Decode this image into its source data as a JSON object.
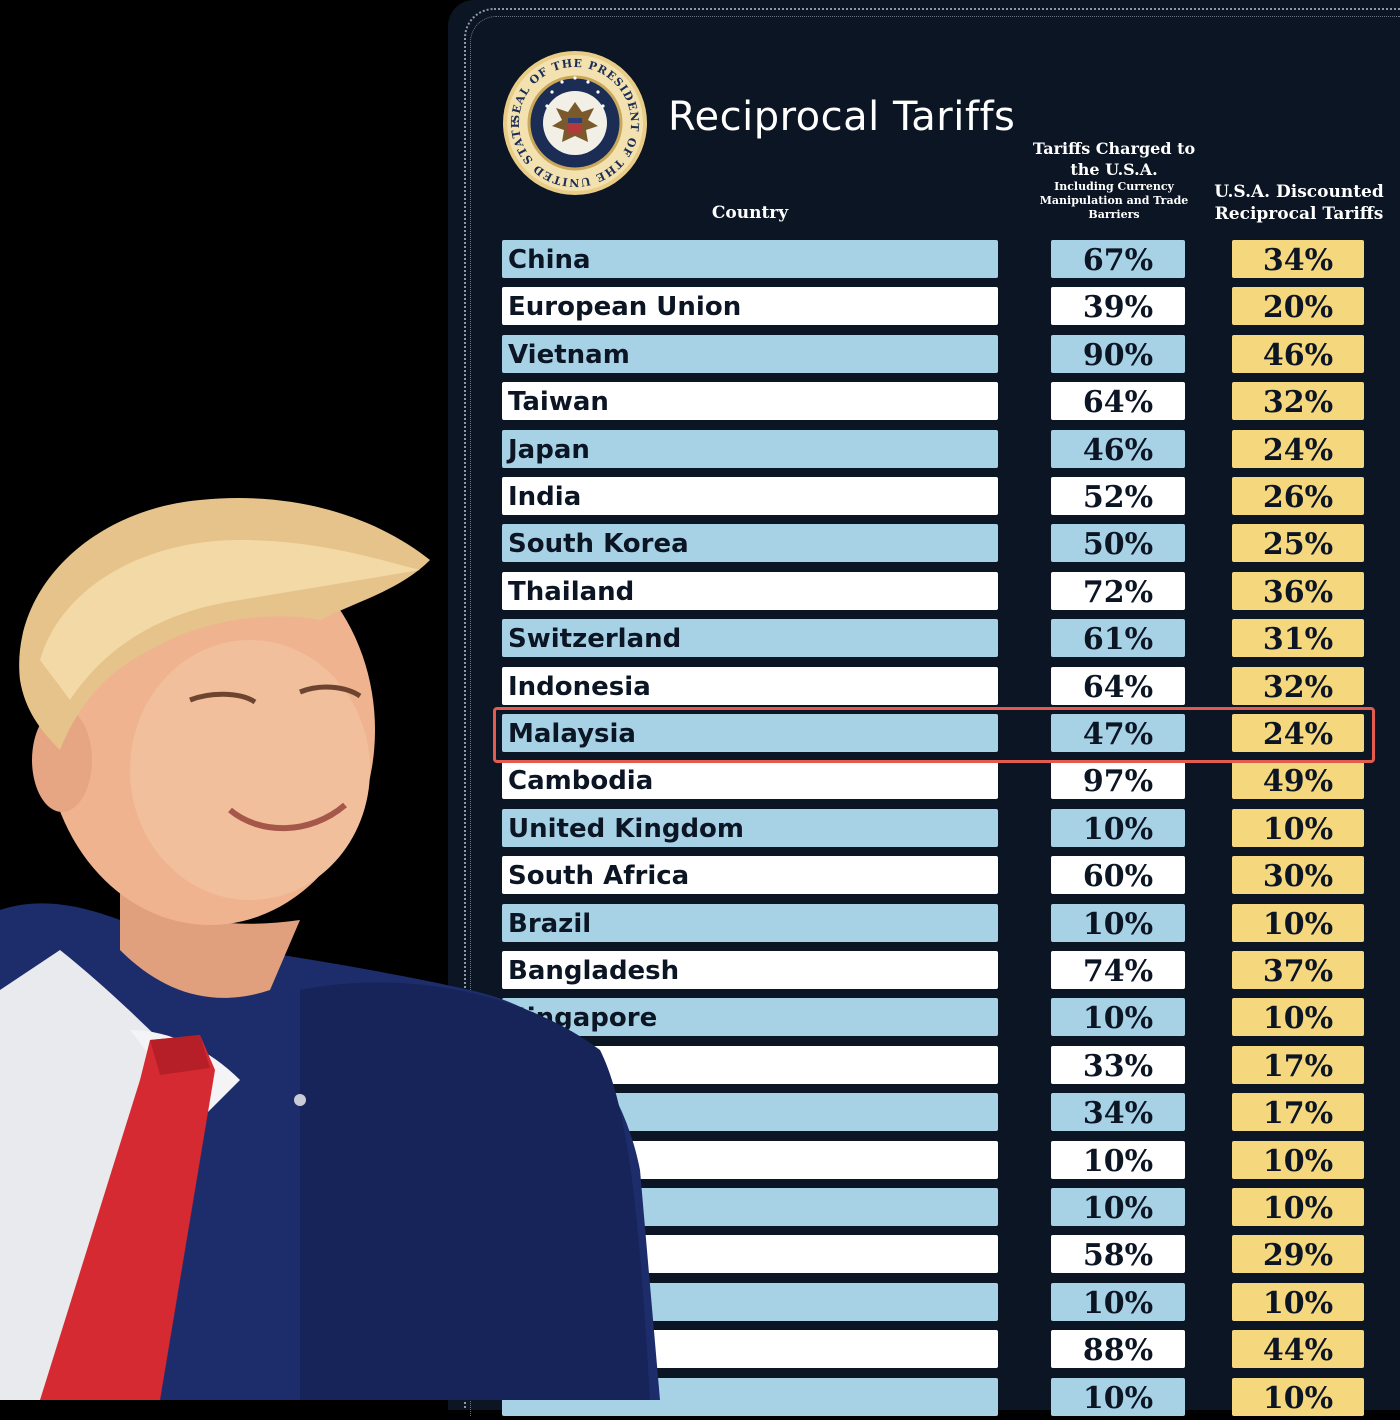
{
  "title": "Reciprocal Tariffs",
  "seal_text": "SEAL OF THE PRESIDENT OF THE UNITED STATES",
  "headers": {
    "country": "Country",
    "charged": "Tariffs Charged to the U.S.A.",
    "charged_sub": "Including Currency Manipulation and Trade Barriers",
    "reciprocal": "U.S.A. Discounted Reciprocal Tariffs"
  },
  "highlighted_country": "Malaysia",
  "colors": {
    "background": "#000000",
    "board": "#0c1524",
    "row_blue": "#a7d2e6",
    "row_white": "#ffffff",
    "reciprocal_cell": "#f5d77e",
    "highlight_border": "#e35b4e"
  },
  "rows": [
    {
      "country": "China",
      "charged": "67%",
      "reciprocal": "34%"
    },
    {
      "country": "European Union",
      "charged": "39%",
      "reciprocal": "20%"
    },
    {
      "country": "Vietnam",
      "charged": "90%",
      "reciprocal": "46%"
    },
    {
      "country": "Taiwan",
      "charged": "64%",
      "reciprocal": "32%"
    },
    {
      "country": "Japan",
      "charged": "46%",
      "reciprocal": "24%"
    },
    {
      "country": "India",
      "charged": "52%",
      "reciprocal": "26%"
    },
    {
      "country": "South Korea",
      "charged": "50%",
      "reciprocal": "25%"
    },
    {
      "country": "Thailand",
      "charged": "72%",
      "reciprocal": "36%"
    },
    {
      "country": "Switzerland",
      "charged": "61%",
      "reciprocal": "31%"
    },
    {
      "country": "Indonesia",
      "charged": "64%",
      "reciprocal": "32%"
    },
    {
      "country": "Malaysia",
      "charged": "47%",
      "reciprocal": "24%"
    },
    {
      "country": "Cambodia",
      "charged": "97%",
      "reciprocal": "49%"
    },
    {
      "country": "United Kingdom",
      "charged": "10%",
      "reciprocal": "10%"
    },
    {
      "country": "South Africa",
      "charged": "60%",
      "reciprocal": "30%"
    },
    {
      "country": "Brazil",
      "charged": "10%",
      "reciprocal": "10%"
    },
    {
      "country": "Bangladesh",
      "charged": "74%",
      "reciprocal": "37%"
    },
    {
      "country": "Singapore",
      "charged": "10%",
      "reciprocal": "10%"
    },
    {
      "country": "",
      "charged": "33%",
      "reciprocal": "17%"
    },
    {
      "country": "",
      "charged": "34%",
      "reciprocal": "17%"
    },
    {
      "country": "",
      "charged": "10%",
      "reciprocal": "10%"
    },
    {
      "country": "",
      "charged": "10%",
      "reciprocal": "10%"
    },
    {
      "country": "",
      "charged": "58%",
      "reciprocal": "29%"
    },
    {
      "country": "",
      "charged": "10%",
      "reciprocal": "10%"
    },
    {
      "country": "",
      "charged": "88%",
      "reciprocal": "44%"
    },
    {
      "country": "",
      "charged": "10%",
      "reciprocal": "10%"
    }
  ]
}
